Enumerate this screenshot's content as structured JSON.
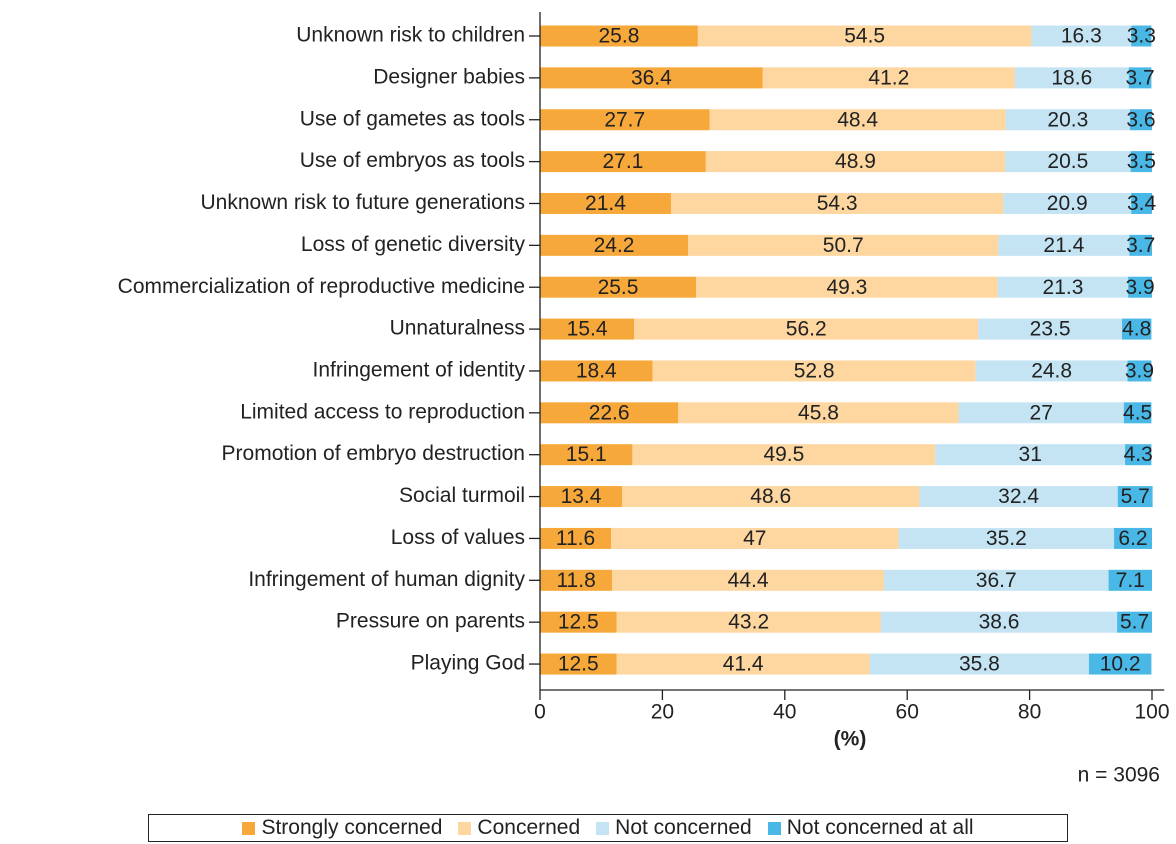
{
  "chart_data": {
    "type": "stacked_barh",
    "x_label": "(%)",
    "annotation": "n = 3096",
    "categories": [
      "Unknown risk to children",
      "Designer babies",
      "Use of gametes as tools",
      "Use of embryos as tools",
      "Unknown risk to future generations",
      "Loss of genetic diversity",
      "Commercialization of reproductive medicine",
      "Unnaturalness",
      "Infringement of identity",
      "Limited access to reproduction",
      "Promotion of embryo destruction",
      "Social turmoil",
      "Loss of values",
      "Infringement of human dignity",
      "Pressure on parents",
      "Playing God"
    ],
    "series": [
      {
        "name": "Strongly concerned",
        "color": "#f7a83a",
        "values": [
          25.8,
          36.4,
          27.7,
          27.1,
          21.4,
          24.2,
          25.5,
          15.4,
          18.4,
          22.6,
          15.1,
          13.4,
          11.6,
          11.8,
          12.5,
          12.5
        ]
      },
      {
        "name": "Concerned",
        "color": "#fdd6a0",
        "values": [
          54.5,
          41.2,
          48.4,
          48.9,
          54.3,
          50.7,
          49.3,
          56.2,
          52.8,
          45.8,
          49.5,
          48.6,
          47,
          44.4,
          43.2,
          41.4
        ]
      },
      {
        "name": "Not concerned",
        "color": "#c4e4f4",
        "values": [
          16.3,
          18.6,
          20.3,
          20.5,
          20.9,
          21.4,
          21.3,
          23.5,
          24.8,
          27,
          31,
          32.4,
          35.2,
          36.7,
          38.6,
          35.8
        ]
      },
      {
        "name": "Not concerned at all",
        "color": "#4ab8e6",
        "values": [
          3.3,
          3.7,
          3.6,
          3.5,
          3.4,
          3.7,
          3.9,
          4.8,
          3.9,
          4.5,
          4.3,
          5.7,
          6.2,
          7.1,
          5.7,
          10.2
        ]
      }
    ],
    "xlim": [
      0,
      102
    ],
    "xticks": [
      0,
      20,
      40,
      60,
      80,
      100
    ]
  }
}
